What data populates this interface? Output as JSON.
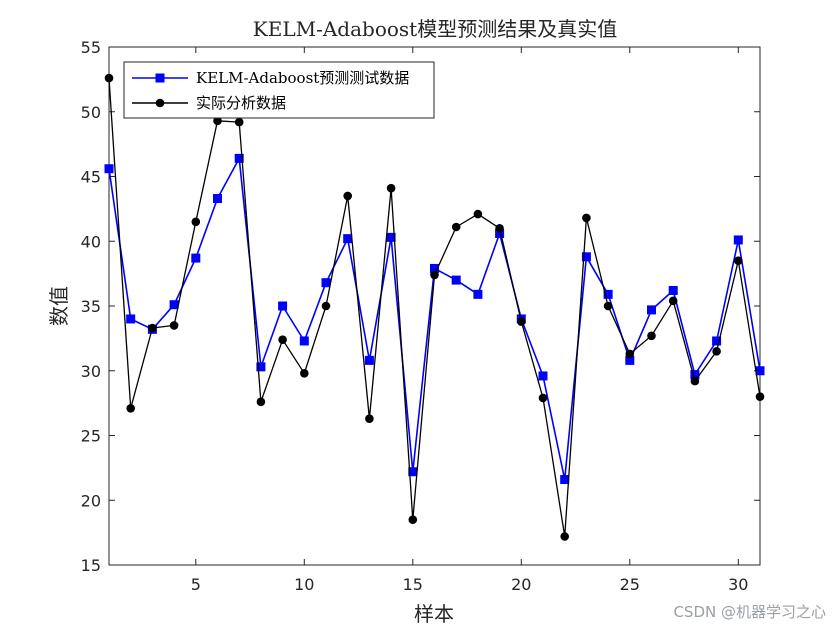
{
  "chart_data": {
    "type": "line",
    "title": "KELM-Adaboost模型预测结果及真实值",
    "xlabel": "样本",
    "ylabel": "数值",
    "xlim": [
      1,
      31
    ],
    "ylim": [
      15,
      55
    ],
    "xticks": [
      5,
      10,
      15,
      20,
      25,
      30
    ],
    "yticks": [
      15,
      20,
      25,
      30,
      35,
      40,
      45,
      50,
      55
    ],
    "grid": false,
    "legend_position": "top-left",
    "x": [
      1,
      2,
      3,
      4,
      5,
      6,
      7,
      8,
      9,
      10,
      11,
      12,
      13,
      14,
      15,
      16,
      17,
      18,
      19,
      20,
      21,
      22,
      23,
      24,
      25,
      26,
      27,
      28,
      29,
      30,
      31
    ],
    "series": [
      {
        "name": "KELM-Adaboost预测测试数据",
        "color": "#0000ff",
        "marker": "square",
        "values": [
          45.6,
          34.0,
          33.2,
          35.1,
          38.7,
          43.3,
          46.4,
          30.3,
          35.0,
          32.3,
          36.8,
          40.2,
          30.8,
          40.3,
          22.2,
          37.9,
          37.0,
          35.9,
          40.6,
          34.0,
          29.6,
          21.6,
          38.8,
          35.9,
          30.8,
          34.7,
          36.2,
          29.7,
          32.3,
          40.1,
          30.0
        ]
      },
      {
        "name": "实际分析数据",
        "color": "#000000",
        "marker": "circle",
        "values": [
          52.6,
          27.1,
          33.3,
          33.5,
          41.5,
          49.3,
          49.2,
          27.6,
          32.4,
          29.8,
          35.0,
          43.5,
          26.3,
          44.1,
          18.5,
          37.4,
          41.1,
          42.1,
          41.0,
          33.8,
          27.9,
          17.2,
          41.8,
          35.0,
          31.3,
          32.7,
          35.4,
          29.2,
          31.5,
          38.5,
          28.0
        ]
      }
    ]
  },
  "watermark": "CSDN @机器学习之心"
}
